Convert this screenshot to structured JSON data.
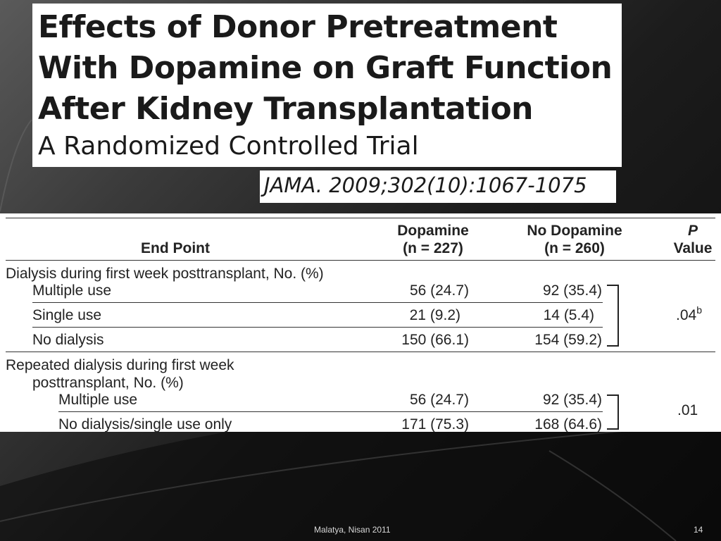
{
  "title": {
    "line1": "Effects of Donor Pretreatment",
    "line2": "With Dopamine on Graft Function",
    "line3": "After Kidney Transplantation",
    "subtitle": "A Randomized Controlled Trial"
  },
  "citation": "JAMA. 2009;302(10):1067-1075",
  "table": {
    "headers": {
      "end_point": "End Point",
      "dopamine_line1": "Dopamine",
      "dopamine_line2": "(n = 227)",
      "nodopamine_line1": "No Dopamine",
      "nodopamine_line2": "(n = 260)",
      "p_line1": "P",
      "p_line2": "Value"
    },
    "section1": {
      "title": "Dialysis during first week posttransplant, No. (%)",
      "rows": [
        {
          "label": "Multiple use",
          "dopamine": "56 (24.7)",
          "no_dopamine": "92 (35.4)"
        },
        {
          "label": "Single use",
          "dopamine": "21 (9.2)",
          "no_dopamine": "14 (5.4)"
        },
        {
          "label": "No dialysis",
          "dopamine": "150 (66.1)",
          "no_dopamine": "154 (59.2)"
        }
      ],
      "p_value": ".04",
      "p_sup": "b"
    },
    "section2": {
      "title_line1": "Repeated dialysis during first week",
      "title_line2": "posttransplant, No. (%)",
      "rows": [
        {
          "label": "Multiple use",
          "dopamine": "56 (24.7)",
          "no_dopamine": "92 (35.4)"
        },
        {
          "label": "No dialysis/single use only",
          "dopamine": "171 (75.3)",
          "no_dopamine": "168 (64.6)"
        }
      ],
      "p_value": ".01"
    }
  },
  "footer": {
    "location": "Malatya, Nisan 2011",
    "page_number": "14"
  }
}
